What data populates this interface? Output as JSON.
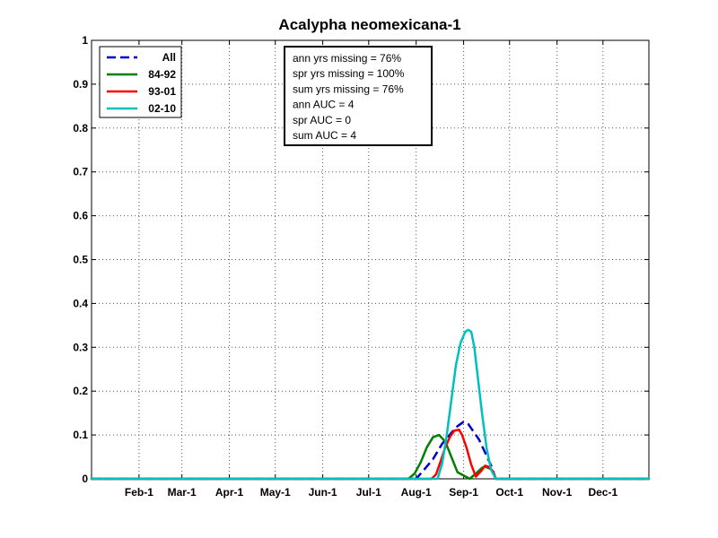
{
  "chart_data": {
    "type": "line",
    "title": "Acalypha neomexicana-1",
    "xlabel": "",
    "ylabel": "",
    "xlim": [
      1,
      365
    ],
    "ylim": [
      0,
      1
    ],
    "grid": true,
    "x_ticks": [
      {
        "label": "Feb-1",
        "day": 32
      },
      {
        "label": "Mar-1",
        "day": 60
      },
      {
        "label": "Apr-1",
        "day": 91
      },
      {
        "label": "May-1",
        "day": 121
      },
      {
        "label": "Jun-1",
        "day": 152
      },
      {
        "label": "Jul-1",
        "day": 182
      },
      {
        "label": "Aug-1",
        "day": 213
      },
      {
        "label": "Sep-1",
        "day": 244
      },
      {
        "label": "Oct-1",
        "day": 274
      },
      {
        "label": "Nov-1",
        "day": 305
      },
      {
        "label": "Dec-1",
        "day": 335
      }
    ],
    "y_ticks": [
      "0",
      "0.1",
      "0.2",
      "0.3",
      "0.4",
      "0.5",
      "0.6",
      "0.7",
      "0.8",
      "0.9",
      "1"
    ],
    "legend": {
      "placement": "top-left",
      "entries": [
        "All",
        "84-92",
        "93-01",
        "02-10"
      ]
    },
    "annotation": [
      "ann yrs missing = 76%",
      "spr yrs missing = 100%",
      "sum yrs missing = 76%",
      "ann AUC = 4",
      "spr AUC = 0",
      "sum AUC = 4"
    ],
    "series": [
      {
        "name": "All",
        "color": "#0000cc",
        "dash": "dashed",
        "x": [
          1,
          213,
          218,
          224,
          230,
          236,
          240,
          244,
          247,
          250,
          254,
          258,
          262,
          265,
          365
        ],
        "y": [
          0,
          0,
          0.02,
          0.045,
          0.08,
          0.105,
          0.12,
          0.13,
          0.125,
          0.11,
          0.09,
          0.06,
          0.03,
          0,
          0
        ]
      },
      {
        "name": "84-92",
        "color": "#008000",
        "dash": "solid",
        "x": [
          1,
          208,
          212,
          216,
          220,
          224,
          228,
          232,
          236,
          240,
          248,
          252,
          256,
          258,
          262,
          265,
          365
        ],
        "y": [
          0,
          0,
          0.012,
          0.038,
          0.072,
          0.095,
          0.1,
          0.085,
          0.05,
          0.015,
          0,
          0.012,
          0.025,
          0.028,
          0.022,
          0,
          0
        ]
      },
      {
        "name": "93-01",
        "color": "#ff0000",
        "dash": "solid",
        "x": [
          1,
          223,
          226,
          229,
          232,
          235,
          238,
          241,
          243,
          246,
          249,
          252,
          256,
          258,
          260,
          263,
          265,
          365
        ],
        "y": [
          0,
          0,
          0.01,
          0.04,
          0.072,
          0.095,
          0.11,
          0.112,
          0.1,
          0.07,
          0.032,
          0.005,
          0.02,
          0.03,
          0.028,
          0.018,
          0,
          0
        ]
      },
      {
        "name": "02-10",
        "color": "#00bfbf",
        "dash": "solid",
        "x": [
          1,
          227,
          230,
          233,
          236,
          239,
          242,
          245,
          247,
          249,
          251,
          253,
          256,
          259,
          262,
          265,
          365
        ],
        "y": [
          0,
          0,
          0.035,
          0.1,
          0.18,
          0.26,
          0.31,
          0.335,
          0.34,
          0.335,
          0.3,
          0.24,
          0.15,
          0.07,
          0.02,
          0,
          0
        ]
      }
    ]
  }
}
